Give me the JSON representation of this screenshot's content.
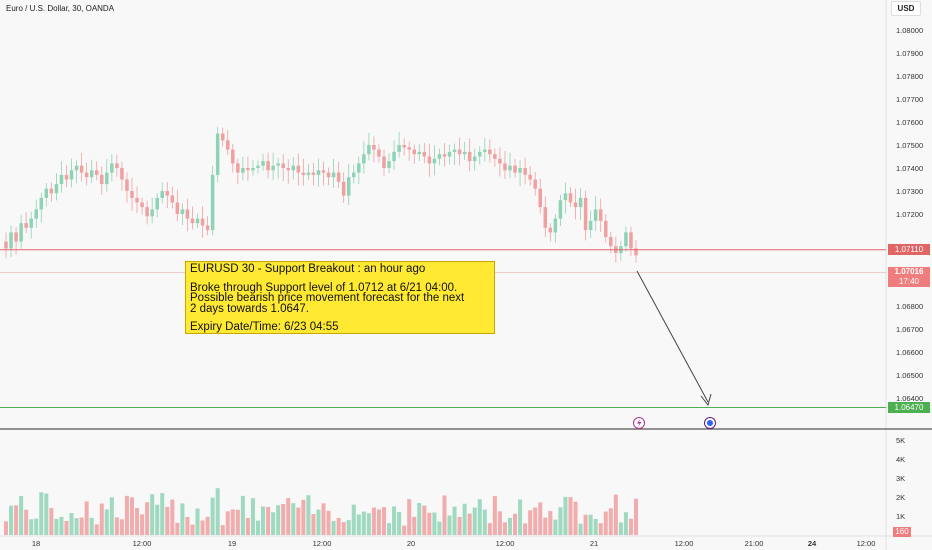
{
  "header": {
    "title": "Euro / U.S. Dollar, 30, OANDA",
    "currency_button": "USD"
  },
  "note": {
    "line1": "EURUSD 30 - Support Breakout : an hour ago",
    "line2": "Broke through Support level of 1.0712 at 6/21 04:00.",
    "line3": "Possible bearish price movement forecast for the next",
    "line4": "2 days towards 1.0647.",
    "line5": "Expiry Date/Time: 6/23 04:55"
  },
  "price_tags": {
    "support": "1.07110",
    "current": "1.07016",
    "countdown": "17:40",
    "target": "1.06470",
    "volume": "160"
  },
  "colors": {
    "up": "#8fd3b6",
    "down": "#f0a0a0",
    "support_line": "#e06666",
    "target_line": "#4caf50",
    "note_bg": "#ffe933"
  },
  "chart_data": {
    "type": "candlestick",
    "title": "Euro / U.S. Dollar, 30, OANDA",
    "ylim": [
      1.0638,
      1.0813
    ],
    "y_ticks": [
      "1.08000",
      "1.07900",
      "1.07800",
      "1.07700",
      "1.07600",
      "1.07500",
      "1.07400",
      "1.07300",
      "1.07200",
      "1.06900",
      "1.06800",
      "1.06700",
      "1.06600",
      "1.06500",
      "1.06400"
    ],
    "x_ticks": [
      "18",
      "12:00",
      "19",
      "12:00",
      "20",
      "12:00",
      "21",
      "12:00",
      "21:00",
      "24",
      "12:00"
    ],
    "volume_ticks": [
      "5K",
      "4K",
      "3K",
      "2K",
      "1K"
    ],
    "volume_ylim": [
      0,
      5500
    ],
    "support_level": 1.0711,
    "target_level": 1.0647,
    "close_series": [
      1.0705,
      1.0712,
      1.0708,
      1.0716,
      1.0714,
      1.0718,
      1.0722,
      1.0727,
      1.0731,
      1.0729,
      1.0733,
      1.0737,
      1.0735,
      1.0739,
      1.0741,
      1.0738,
      1.0736,
      1.0739,
      1.0737,
      1.0733,
      1.0738,
      1.0742,
      1.074,
      1.0735,
      1.073,
      1.0727,
      1.0725,
      1.0723,
      1.0719,
      1.0722,
      1.0727,
      1.073,
      1.0728,
      1.0725,
      1.072,
      1.0722,
      1.0718,
      1.0716,
      1.0718,
      1.0715,
      1.0713,
      1.0737,
      1.0755,
      1.0752,
      1.0748,
      1.0742,
      1.0738,
      1.074,
      1.0739,
      1.074,
      1.0741,
      1.0743,
      1.0739,
      1.0741,
      1.0742,
      1.074,
      1.0739,
      1.0741,
      1.0738,
      1.0737,
      1.0738,
      1.0737,
      1.0739,
      1.0738,
      1.0736,
      1.0738,
      1.0734,
      1.0728,
      1.0736,
      1.0738,
      1.0742,
      1.0746,
      1.075,
      1.0748,
      1.0745,
      1.074,
      1.0743,
      1.0747,
      1.075,
      1.0749,
      1.0748,
      1.0746,
      1.0747,
      1.0745,
      1.0742,
      1.0744,
      1.0746,
      1.0745,
      1.0747,
      1.0748,
      1.0746,
      1.0747,
      1.0743,
      1.0745,
      1.0747,
      1.0748,
      1.0746,
      1.0744,
      1.0742,
      1.0739,
      1.0741,
      1.0738,
      1.074,
      1.0737,
      1.0735,
      1.0731,
      1.0723,
      1.0714,
      1.0712,
      1.0718,
      1.0726,
      1.0729,
      1.0725,
      1.0723,
      1.0727,
      1.0713,
      1.0717,
      1.0722,
      1.0717,
      1.071,
      1.0706,
      1.0703,
      1.0706,
      1.0712,
      1.0705,
      1.0702
    ]
  }
}
